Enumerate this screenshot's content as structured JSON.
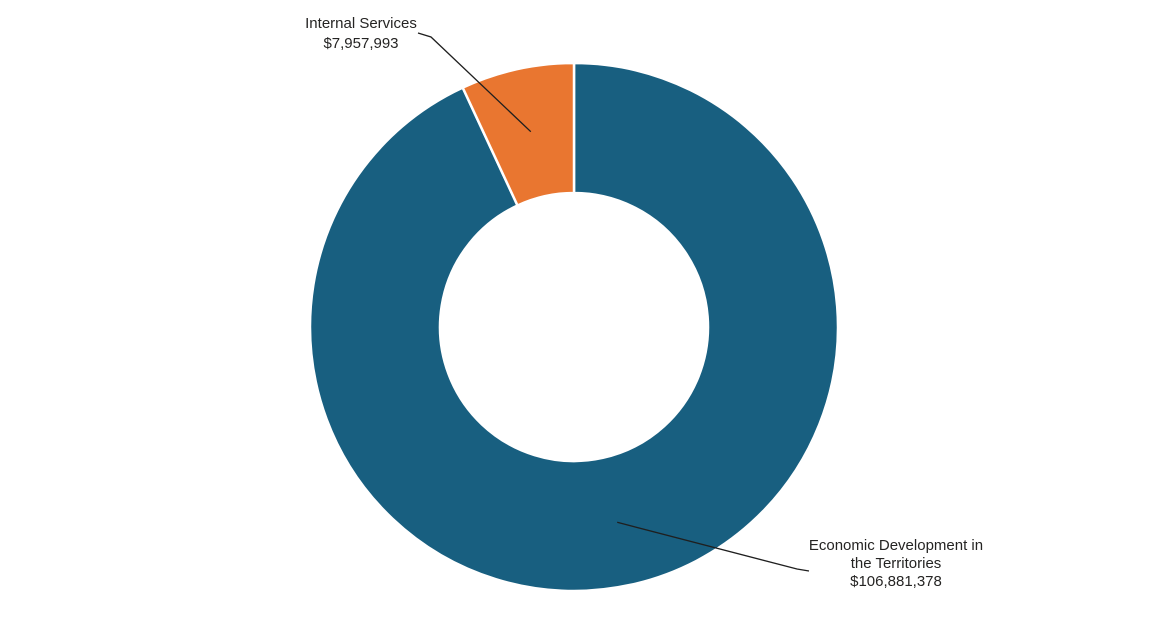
{
  "page": {
    "background_color": "#ffffff"
  },
  "chart_data": {
    "type": "pie",
    "subtype": "donut",
    "title": "",
    "legend": "none",
    "label_style": "outside-callouts-with-leader-lines",
    "start_angle": "top",
    "direction": "clockwise",
    "inner_radius_ratio": 0.51,
    "label_color": "#252423",
    "leader_line_color": "#1f1f1f",
    "slice_border_color": "#ffffff",
    "total": 114839371,
    "slices": [
      {
        "label": "Economic Development in the Territories",
        "label_lines": [
          "Economic Development in",
          "the Territories"
        ],
        "value": 106881378,
        "display_value": "$106,881,378",
        "color": "#185F80"
      },
      {
        "label": "Internal Services",
        "label_lines": [
          "Internal Services"
        ],
        "value": 7957993,
        "display_value": "$7,957,993",
        "color": "#E97630"
      }
    ]
  }
}
